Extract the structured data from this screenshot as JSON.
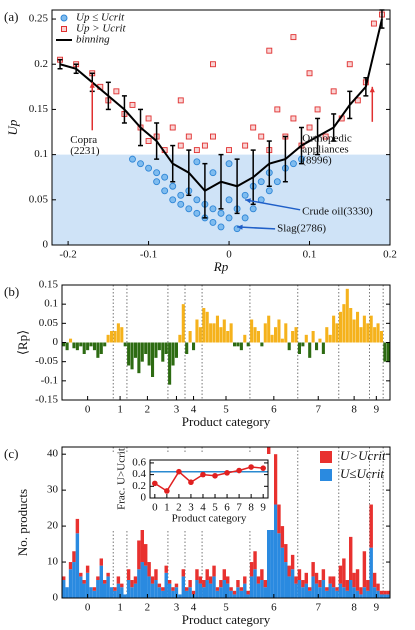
{
  "chart_data": [
    {
      "type": "scatter",
      "panel_label": "(a)",
      "x_label": "Rp",
      "y_label": "Up",
      "xlim": [
        -0.22,
        0.2
      ],
      "xticks": [
        -0.2,
        -0.1,
        0,
        0.1,
        0.2
      ],
      "ylim": [
        0,
        0.26
      ],
      "yticks": [
        0,
        0.05,
        0.1,
        0.15,
        0.2,
        0.25
      ],
      "threshold": 0.1,
      "threshold_color": "#cfe3f7",
      "series": [
        {
          "name": "Up ≤ Ucrit",
          "marker": "circle",
          "color": "#2f86d6",
          "x": [
            -0.12,
            -0.11,
            -0.1,
            -0.09,
            -0.09,
            -0.08,
            -0.08,
            -0.07,
            -0.07,
            -0.06,
            -0.06,
            -0.05,
            -0.05,
            -0.04,
            -0.04,
            -0.03,
            -0.03,
            -0.02,
            -0.02,
            -0.01,
            -0.01,
            0,
            0,
            0.01,
            0.01,
            0.02,
            0.02,
            0.03,
            0.03,
            0.04,
            0.04,
            0.05,
            0.05,
            0.06,
            0.07,
            0.08,
            0.09,
            -0.02,
            0,
            -0.04
          ],
          "values": [
            0.095,
            0.09,
            0.085,
            0.08,
            0.07,
            0.075,
            0.06,
            0.065,
            0.05,
            0.055,
            0.045,
            0.04,
            0.06,
            0.035,
            0.05,
            0.03,
            0.045,
            0.025,
            0.04,
            0.02,
            0.035,
            0.03,
            0.05,
            0.018,
            0.04,
            0.03,
            0.055,
            0.04,
            0.065,
            0.05,
            0.07,
            0.06,
            0.08,
            0.07,
            0.085,
            0.09,
            0.095,
            0.08,
            0.09,
            0.092
          ]
        },
        {
          "name": "Up > Ucrit",
          "marker": "square",
          "color": "#e03030",
          "x": [
            -0.21,
            -0.19,
            -0.17,
            -0.16,
            -0.15,
            -0.14,
            -0.13,
            -0.12,
            -0.11,
            -0.1,
            -0.1,
            -0.09,
            -0.08,
            -0.07,
            -0.06,
            -0.05,
            -0.04,
            -0.03,
            -0.06,
            -0.02,
            0,
            0.02,
            0.03,
            0.04,
            0.05,
            0.06,
            0.07,
            0.08,
            0.09,
            0.1,
            0.11,
            0.12,
            0.13,
            0.14,
            0.15,
            0.16,
            0.17,
            0.18,
            0.19,
            0.1,
            -0.02,
            0.05,
            0.08
          ],
          "values": [
            0.205,
            0.2,
            0.19,
            0.175,
            0.16,
            0.17,
            0.145,
            0.155,
            0.13,
            0.14,
            0.115,
            0.12,
            0.105,
            0.13,
            0.11,
            0.12,
            0.105,
            0.11,
            0.16,
            0.12,
            0.105,
            0.11,
            0.13,
            0.12,
            0.105,
            0.15,
            0.12,
            0.14,
            0.11,
            0.13,
            0.15,
            0.12,
            0.17,
            0.14,
            0.2,
            0.16,
            0.18,
            0.245,
            0.255,
            0.19,
            0.2,
            0.215,
            0.23
          ]
        },
        {
          "name": "binning",
          "marker": "errorbar",
          "color": "#000000",
          "x": [
            -0.21,
            -0.19,
            -0.17,
            -0.15,
            -0.13,
            -0.11,
            -0.09,
            -0.07,
            -0.05,
            -0.03,
            -0.01,
            0.01,
            0.03,
            0.05,
            0.07,
            0.09,
            0.11,
            0.13,
            0.15,
            0.17,
            0.19
          ],
          "values": [
            0.2,
            0.195,
            0.18,
            0.165,
            0.15,
            0.13,
            0.115,
            0.09,
            0.08,
            0.06,
            0.07,
            0.065,
            0.075,
            0.09,
            0.095,
            0.11,
            0.12,
            0.13,
            0.155,
            0.175,
            0.25
          ],
          "errors": [
            0.005,
            0.005,
            0.01,
            0.015,
            0.015,
            0.02,
            0.02,
            0.02,
            0.025,
            0.03,
            0.03,
            0.03,
            0.03,
            0.025,
            0.025,
            0.02,
            0.02,
            0.015,
            0.015,
            0.01,
            0.01
          ]
        }
      ],
      "annotations": [
        {
          "lines": [
            "Copra",
            "(2231)"
          ],
          "x": -0.17,
          "y": 0.18,
          "color": "#e03030"
        },
        {
          "lines": [
            "Orthopedic",
            "appliances",
            "(8996)"
          ],
          "x": 0.178,
          "y": 0.175,
          "color": "#e03030"
        },
        {
          "lines": [
            "Crude oil(3330)"
          ],
          "x": 0.02,
          "y": 0.05,
          "color": "#1f5fc8"
        },
        {
          "lines": [
            "Slag(2786)"
          ],
          "x": 0.01,
          "y": 0.02,
          "color": "#1f5fc8"
        }
      ]
    },
    {
      "type": "bar",
      "panel_label": "(b)",
      "x_label": "Product category",
      "y_label": "⟨Rp⟩",
      "ylim": [
        -0.15,
        0.15
      ],
      "yticks": [
        -0.15,
        -0.1,
        -0.05,
        0,
        0.05,
        0.1,
        0.15
      ],
      "colors": {
        "positive": "#f5b21c",
        "negative": "#2d6b12"
      },
      "xticks": [
        {
          "value": 7,
          "label": "0"
        },
        {
          "value": 16.5,
          "label": "1"
        },
        {
          "value": 24.5,
          "label": "2"
        },
        {
          "value": 33,
          "label": "3"
        },
        {
          "value": 38,
          "label": "4"
        },
        {
          "value": 47.5,
          "label": "5"
        },
        {
          "value": 61.5,
          "label": "6"
        },
        {
          "value": 74.5,
          "label": "7"
        },
        {
          "value": 85,
          "label": "8"
        },
        {
          "value": 91.5,
          "label": "9"
        }
      ],
      "group_bounds": [
        14.5,
        18.5,
        30.5,
        35.5,
        40.5,
        54.5,
        68.5,
        80.5,
        89.5,
        93.5
      ],
      "values": [
        -0.01,
        -0.02,
        0.01,
        -0.015,
        -0.02,
        -0.01,
        -0.03,
        -0.02,
        -0.01,
        -0.02,
        -0.04,
        -0.03,
        -0.01,
        0.02,
        0.03,
        0.03,
        0.05,
        0.04,
        -0.01,
        -0.06,
        -0.07,
        -0.04,
        -0.08,
        -0.05,
        -0.03,
        -0.06,
        -0.09,
        -0.04,
        -0.02,
        -0.05,
        -0.03,
        -0.11,
        -0.06,
        -0.04,
        0.02,
        0.1,
        -0.03,
        0.03,
        -0.02,
        0.06,
        0.04,
        0.09,
        0.08,
        0.05,
        0.05,
        0.07,
        0.04,
        0.06,
        0.03,
        0.05,
        -0.01,
        -0.01,
        -0.02,
        0.02,
        -0.01,
        0.06,
        0.04,
        0.03,
        -0.01,
        0.05,
        0.07,
        0.02,
        0.04,
        0.06,
        0.01,
        0.05,
        -0.02,
        0.03,
        0.04,
        -0.03,
        -0.01,
        0.02,
        -0.04,
        0.03,
        -0.02,
        0.01,
        -0.03,
        0.04,
        0.02,
        0.07,
        0.05,
        0.08,
        0.1,
        0.14,
        0.09,
        0.06,
        0.08,
        0.04,
        0.07,
        0.05,
        0.07,
        0.04,
        0.05,
        0.03,
        -0.05,
        -0.05
      ]
    },
    {
      "type": "stacked_bar",
      "panel_label": "(c)",
      "x_label": "Product category",
      "y_label": "No. products",
      "ylim": [
        0,
        42
      ],
      "yticks": [
        0,
        10,
        20,
        30,
        40
      ],
      "xticks": [
        {
          "value": 7,
          "label": "0"
        },
        {
          "value": 16.5,
          "label": "1"
        },
        {
          "value": 24.5,
          "label": "2"
        },
        {
          "value": 33,
          "label": "3"
        },
        {
          "value": 38,
          "label": "4"
        },
        {
          "value": 47.5,
          "label": "5"
        },
        {
          "value": 61.5,
          "label": "6"
        },
        {
          "value": 74.5,
          "label": "7"
        },
        {
          "value": 85,
          "label": "8"
        },
        {
          "value": 91.5,
          "label": "9"
        }
      ],
      "group_bounds": [
        14.5,
        18.5,
        30.5,
        35.5,
        40.5,
        54.5,
        68.5,
        80.5,
        89.5,
        93.5
      ],
      "series": [
        {
          "name": "U>Ucrit",
          "color": "#e8312f",
          "values": [
            1,
            0,
            2,
            3,
            4,
            1,
            1,
            2,
            0,
            1,
            1,
            2,
            1,
            1,
            0,
            1,
            2,
            1,
            0,
            3,
            2,
            2,
            8,
            12,
            6,
            4,
            2,
            3,
            1,
            1,
            2,
            1,
            1,
            1,
            0,
            2,
            1,
            2,
            1,
            3,
            2,
            2,
            3,
            2,
            3,
            1,
            2,
            3,
            2,
            1,
            1,
            2,
            1,
            2,
            1,
            4,
            5,
            2,
            3,
            2,
            8,
            10,
            14,
            8,
            6,
            5,
            3,
            4,
            2,
            3,
            2,
            3,
            1,
            4,
            3,
            2,
            3,
            1,
            2,
            3,
            1,
            5,
            8,
            3,
            12,
            4,
            6,
            2,
            10,
            3,
            12,
            4,
            2,
            1,
            1,
            1
          ]
        },
        {
          "name": "U≤Ucrit",
          "color": "#2a8ae0",
          "values": [
            5,
            3,
            8,
            10,
            18,
            6,
            4,
            7,
            3,
            2,
            5,
            9,
            4,
            6,
            3,
            2,
            4,
            3,
            1,
            5,
            3,
            4,
            8,
            10,
            9,
            6,
            4,
            5,
            3,
            2,
            7,
            4,
            2,
            3,
            1,
            6,
            2,
            3,
            1,
            5,
            4,
            3,
            5,
            4,
            6,
            2,
            3,
            5,
            4,
            2,
            1,
            3,
            2,
            4,
            1,
            6,
            8,
            4,
            5,
            3,
            34,
            20,
            26,
            18,
            14,
            10,
            6,
            8,
            4,
            5,
            3,
            4,
            2,
            6,
            4,
            3,
            5,
            2,
            4,
            3,
            2,
            4,
            3,
            2,
            5,
            3,
            2,
            1,
            3,
            2,
            14,
            3,
            2,
            1,
            1,
            1
          ]
        }
      ]
    },
    {
      "type": "line",
      "x_label": "Product category",
      "y_label": "Frac. U>Ucrit",
      "xlim": [
        -0.4,
        9.4
      ],
      "xticks": [
        0,
        1,
        2,
        3,
        4,
        5,
        6,
        7,
        8,
        9
      ],
      "ylim": [
        0,
        0.65
      ],
      "yticks": [
        0,
        0.2,
        0.4,
        0.6
      ],
      "reference_line": 0.45,
      "reference_color": "#2a8ad0",
      "x": [
        0,
        1,
        2,
        3,
        4,
        5,
        6,
        7,
        8,
        9
      ],
      "values": [
        0.25,
        0.12,
        0.45,
        0.27,
        0.4,
        0.38,
        0.43,
        0.47,
        0.53,
        0.51
      ],
      "color": "#e02020"
    }
  ]
}
